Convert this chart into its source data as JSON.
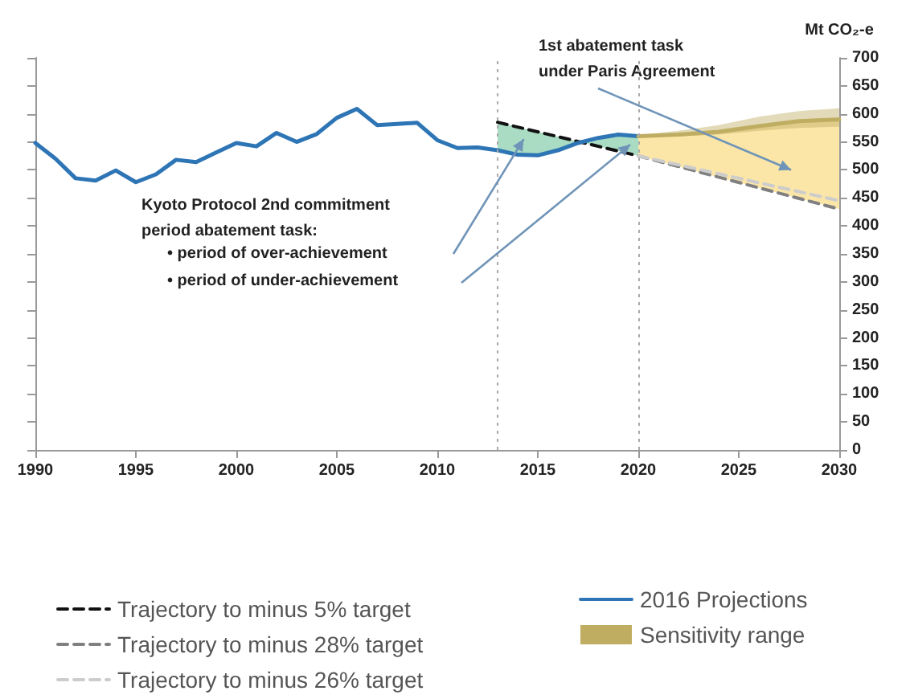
{
  "chart_data": {
    "type": "line",
    "ylabel": "Mt CO₂-e",
    "xlim": [
      1990,
      2030
    ],
    "xticks": [
      1990,
      1995,
      2000,
      2005,
      2010,
      2015,
      2020,
      2025,
      2030
    ],
    "ylim": [
      0,
      700
    ],
    "yticks": [
      0,
      50,
      100,
      150,
      200,
      250,
      300,
      350,
      400,
      450,
      500,
      550,
      600,
      650,
      700
    ],
    "grid": false,
    "legend": "bottom",
    "marker": "none",
    "annotations": [
      "Kyoto Protocol 2nd commitment period abatement task:",
      "• period of over-achievement",
      "• period of under-achievement",
      "1st abatement task under Paris Agreement"
    ],
    "ref_lines": [
      {
        "axis": "x",
        "value": 2013,
        "color": "#aaaaaa",
        "line_style": "dotted"
      },
      {
        "axis": "x",
        "value": 2020,
        "color": "#aaaaaa",
        "line_style": "dotted"
      }
    ],
    "series": [
      {
        "name": "Trajectory to minus 5% target",
        "line_style": "dashed",
        "color": "#111111",
        "x": [
          2013,
          2020
        ],
        "values": [
          585,
          525
        ]
      },
      {
        "name": "Trajectory to minus 28% target",
        "line_style": "dashed",
        "color": "#808080",
        "x": [
          2020,
          2030
        ],
        "values": [
          525,
          430
        ]
      },
      {
        "name": "Trajectory to minus 26% target",
        "line_style": "dashed",
        "color": "#cccccc",
        "x": [
          2020,
          2030
        ],
        "values": [
          525,
          445
        ]
      },
      {
        "name": "2016 Projections",
        "line_style": "solid",
        "color": "#2e75b6",
        "x": [
          1990,
          1991,
          1992,
          1993,
          1994,
          1995,
          1996,
          1997,
          1998,
          1999,
          2000,
          2001,
          2002,
          2003,
          2004,
          2005,
          2006,
          2007,
          2008,
          2009,
          2010,
          2011,
          2012,
          2013,
          2014,
          2015,
          2016,
          2017,
          2018,
          2019,
          2020
        ],
        "values": [
          548,
          520,
          485,
          481,
          499,
          478,
          492,
          518,
          514,
          531,
          548,
          542,
          566,
          550,
          564,
          593,
          609,
          580,
          582,
          584,
          553,
          539,
          540,
          535,
          527,
          526,
          535,
          548,
          557,
          563,
          560
        ]
      },
      {
        "name": "Sensitivity range",
        "line_style": "solid",
        "color": "#bfae62",
        "x": [
          2020,
          2022,
          2024,
          2026,
          2028,
          2030
        ],
        "values": [
          560,
          563,
          568,
          578,
          587,
          590
        ],
        "lower": [
          558,
          560,
          563,
          570,
          575,
          577
        ],
        "upper": [
          562,
          570,
          580,
          595,
          605,
          610
        ]
      }
    ]
  }
}
